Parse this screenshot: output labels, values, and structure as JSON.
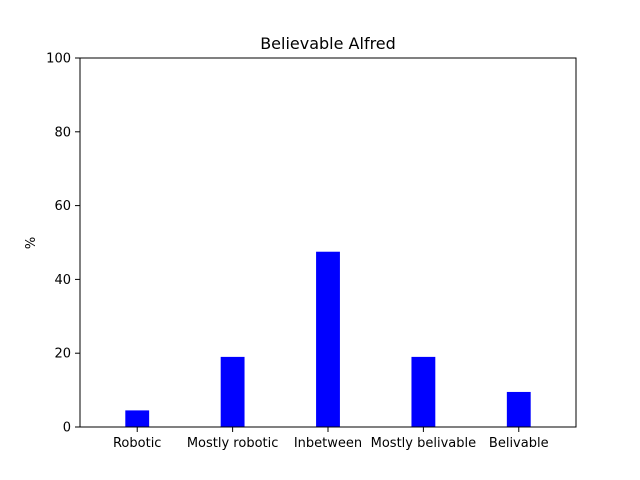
{
  "chart_data": {
    "type": "bar",
    "title": "Believable Alfred",
    "xlabel": "",
    "ylabel": "%",
    "categories": [
      "Robotic",
      "Mostly robotic",
      "Inbetween",
      "Mostly belivable",
      "Belivable"
    ],
    "values": [
      4.5,
      19,
      47.5,
      19,
      9.5
    ],
    "ylim": [
      0,
      100
    ],
    "yticks": [
      0,
      20,
      40,
      60,
      80,
      100
    ],
    "bar_color": "#0000ff",
    "grid": false,
    "legend": "none"
  }
}
